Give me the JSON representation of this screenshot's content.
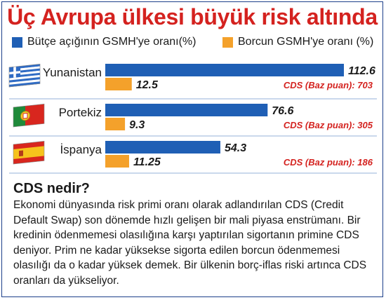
{
  "title": "Üç Avrupa ülkesi büyük risk altında",
  "legend": {
    "budget_label": "Bütçe açığının GSMH'ye oranı(%)",
    "debt_label": "Borcun GSMH'ye oranı (%)"
  },
  "colors": {
    "budget": "#1f5fb5",
    "debt": "#f4a12b",
    "title": "#d4221f",
    "cds": "#d4221f"
  },
  "chart_data": {
    "type": "bar",
    "orientation": "horizontal",
    "categories": [
      "Yunanistan",
      "Portekiz",
      "İspanya"
    ],
    "flags": [
      "greece-flag-icon",
      "portugal-flag-icon",
      "spain-flag-icon"
    ],
    "series": [
      {
        "name": "Bütçe açığının GSMH'ye oranı(%)",
        "values": [
          112.6,
          76.6,
          54.3
        ],
        "labels": [
          "112.6",
          "76.6",
          "54.3"
        ]
      },
      {
        "name": "Borcun GSMH'ye oranı (%)",
        "values": [
          12.5,
          9.3,
          11.25
        ],
        "labels": [
          "12.5",
          "9.3",
          "11.25"
        ]
      }
    ],
    "annotations": [
      "CDS (Baz puan): 703",
      "CDS (Baz puan): 305",
      "CDS (Baz puan): 186"
    ],
    "xlim": [
      0,
      112.6
    ],
    "grid": false
  },
  "info": {
    "heading": "CDS nedir?",
    "text": "Ekonomi dünyasında risk primi oranı olarak adlandırılan CDS (Credit Default Swap) son dönemde hızlı gelişen bir mali piyasa enstrümanı. Bir kredinin ödenmemesi olasılığına karşı yaptırılan sigortanın primine CDS deniyor. Prim ne kadar yüksekse sigorta edilen borcun ödenmemesi olasılığı da o kadar yüksek demek. Bir ülkenin borç-iflas riski artınca CDS oranları da yükseliyor."
  }
}
